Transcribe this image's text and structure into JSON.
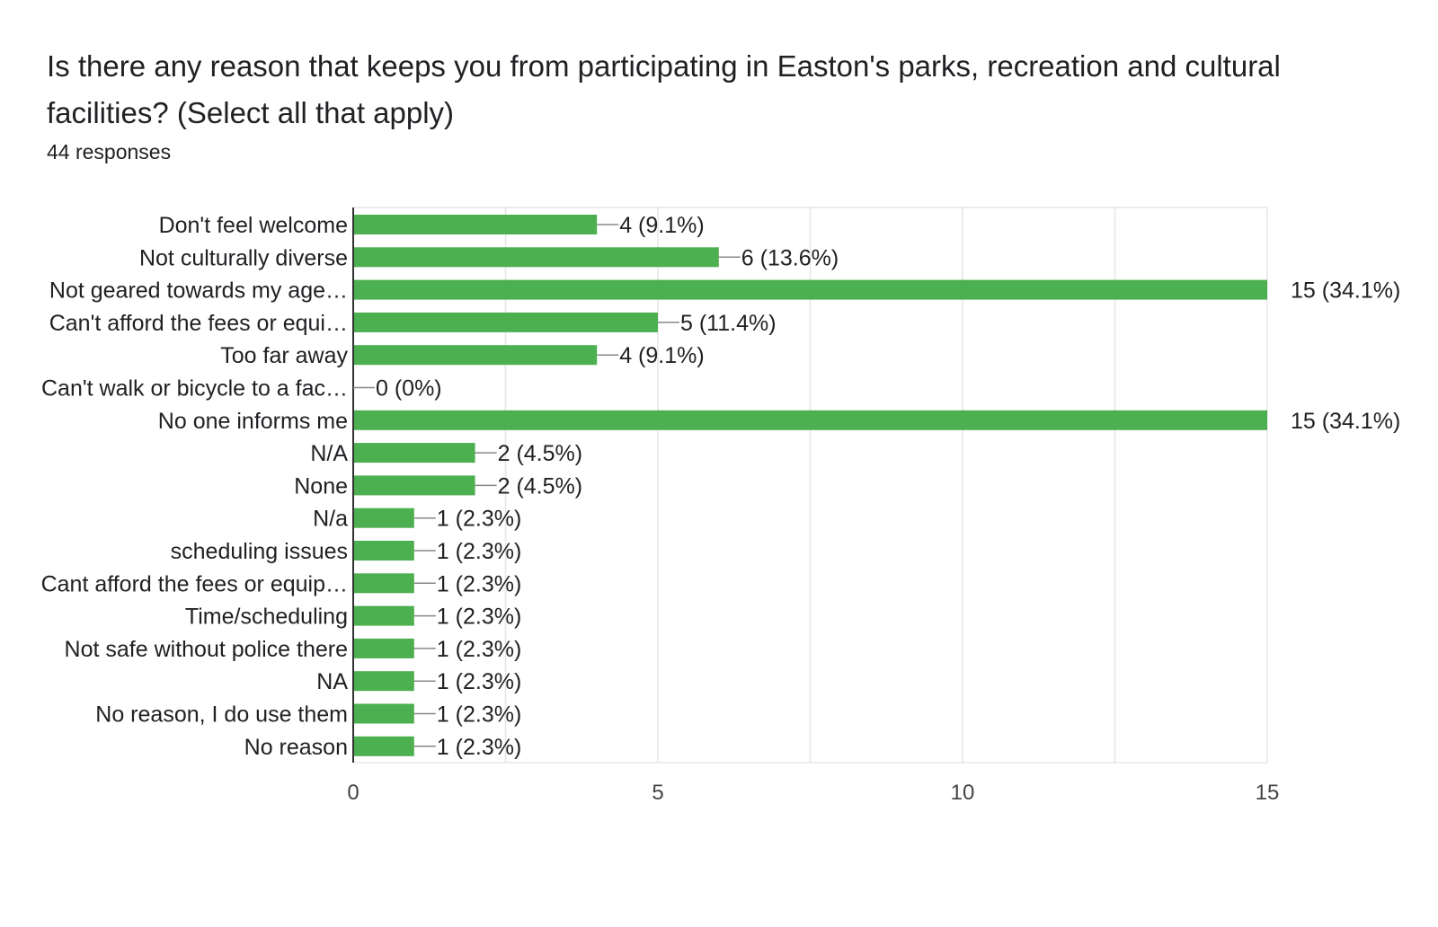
{
  "question": "Is there any reason that keeps you from participating in Easton's parks, recreation and cultural facilities? (Select all that apply)",
  "response_count": "44 responses",
  "colors": {
    "bar": "#4caf50",
    "grid": "#e6e6e6",
    "axis": "#333333"
  },
  "chart_data": {
    "type": "bar",
    "orientation": "horizontal",
    "title": "Is there any reason that keeps you from participating in Easton's parks, recreation and cultural facilities? (Select all that apply)",
    "xlabel": "",
    "ylabel": "",
    "xlim": [
      0,
      15
    ],
    "xticks": [
      0,
      5,
      10,
      15
    ],
    "grid": true,
    "categories": [
      "Don't feel welcome",
      "Not culturally diverse",
      "Not geared towards my age…",
      "Can't afford the fees or equi…",
      "Too far away",
      "Can't walk or bicycle to a fac…",
      "No one informs me",
      "N/A",
      "None",
      "N/a",
      "scheduling issues",
      "Cant afford the fees or equip…",
      "Time/scheduling",
      "Not safe without police there",
      "NA",
      "No reason, I do use them",
      "No reason"
    ],
    "values": [
      4,
      6,
      15,
      5,
      4,
      0,
      15,
      2,
      2,
      1,
      1,
      1,
      1,
      1,
      1,
      1,
      1
    ],
    "labels": [
      "4 (9.1%)",
      "6 (13.6%)",
      "15 (34.1%)",
      "5 (11.4%)",
      "4 (9.1%)",
      "0 (0%)",
      "15 (34.1%)",
      "2 (4.5%)",
      "2 (4.5%)",
      "1 (2.3%)",
      "1 (2.3%)",
      "1 (2.3%)",
      "1 (2.3%)",
      "1 (2.3%)",
      "1 (2.3%)",
      "1 (2.3%)",
      "1 (2.3%)"
    ]
  }
}
